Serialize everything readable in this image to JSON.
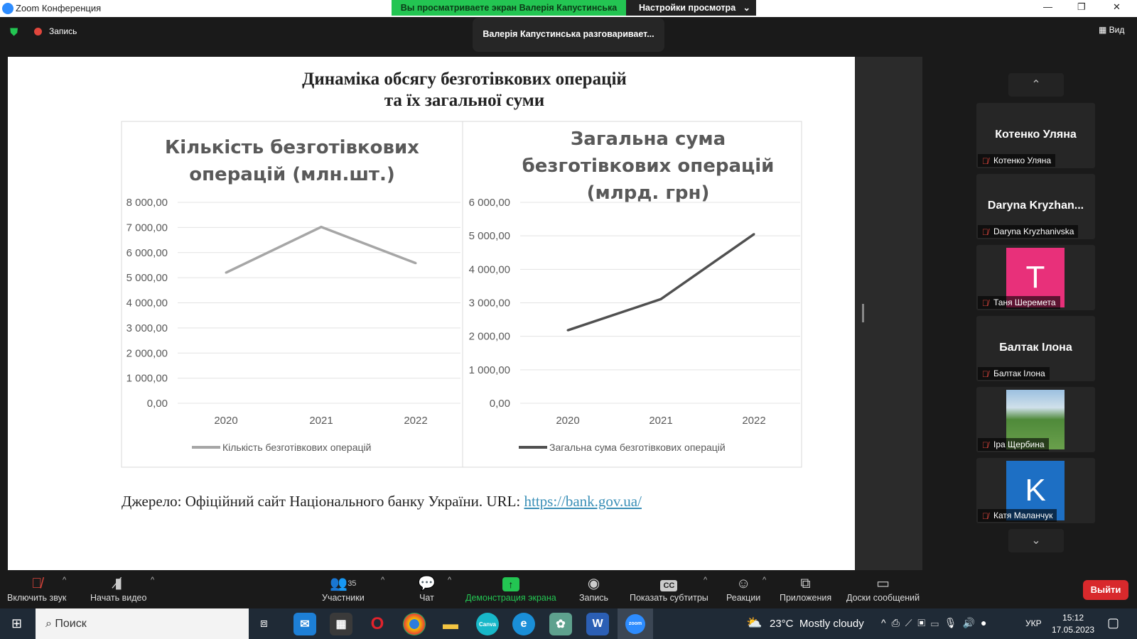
{
  "window": {
    "title": "Zoom Конференция",
    "share_banner": "Вы просматриваете экран Валерія Капустинська",
    "view_settings": "Настройки просмотра"
  },
  "topbar": {
    "record_label": "Запись",
    "speaking": "Валерія Капустинська разговаривает...",
    "view_label": "Вид"
  },
  "slide": {
    "title_line1": "Динаміка обсягу безготівкових операцій",
    "title_line2": "та їх загальної суми",
    "source_text": "Джерело: Офіційний сайт Національного банку України. URL: ",
    "source_link": "https://bank.gov.ua/"
  },
  "chart_data": [
    {
      "type": "line",
      "title_line1": "Кількість безготівкових",
      "title_line2": "операцій (млн.шт.)",
      "categories": [
        "2020",
        "2021",
        "2022"
      ],
      "series": [
        {
          "name": "Кількість безготівкових операцій",
          "values": [
            5200,
            7020,
            5580
          ],
          "color": "#a6a6a6"
        }
      ],
      "ylim": [
        0,
        8000
      ],
      "yticks": [
        "0,00",
        "1 000,00",
        "2 000,00",
        "3 000,00",
        "4 000,00",
        "5 000,00",
        "6 000,00",
        "7 000,00",
        "8 000,00"
      ],
      "grid": true,
      "legend": "bottom"
    },
    {
      "type": "line",
      "title_line1": "Загальна сума",
      "title_line2": "безготівкових операцій",
      "title_line3": "(млрд. грн)",
      "categories": [
        "2020",
        "2021",
        "2022"
      ],
      "series": [
        {
          "name": "Загальна сума безготівкових операцій",
          "values": [
            2180,
            3110,
            5050
          ],
          "color": "#505050"
        }
      ],
      "ylim": [
        0,
        6000
      ],
      "yticks": [
        "0,00",
        "1 000,00",
        "2 000,00",
        "3 000,00",
        "4 000,00",
        "5 000,00",
        "6 000,00"
      ],
      "grid": true,
      "legend": "bottom"
    }
  ],
  "participants": [
    {
      "name": "Котенко Уляна",
      "label": "Котенко Уляна"
    },
    {
      "name": "Daryna Kryzhan...",
      "label": "Daryna Kryzhanivska"
    },
    {
      "avatar": "T",
      "label": "Таня Шеремета",
      "color": "#e8307a"
    },
    {
      "name": "Балтак Ілона",
      "label": "Балтак Ілона"
    },
    {
      "label": "Іра Щербина"
    },
    {
      "avatar": "K",
      "label": "Катя Маланчук",
      "color": "#1d6fc4"
    }
  ],
  "toolbar": {
    "mute": "Включить звук",
    "video": "Начать видео",
    "participants": "Участники",
    "participants_count": "35",
    "chat": "Чат",
    "share": "Демонстрация экрана",
    "record": "Запись",
    "captions": "Показать субтитры",
    "reactions": "Реакции",
    "apps": "Приложения",
    "whiteboards": "Доски сообщений",
    "leave": "Выйти"
  },
  "taskbar": {
    "search": "Поиск",
    "weather": "23°C  Mostly cloudy",
    "lang": "УКР",
    "time": "15:12",
    "date": "17.05.2023"
  }
}
